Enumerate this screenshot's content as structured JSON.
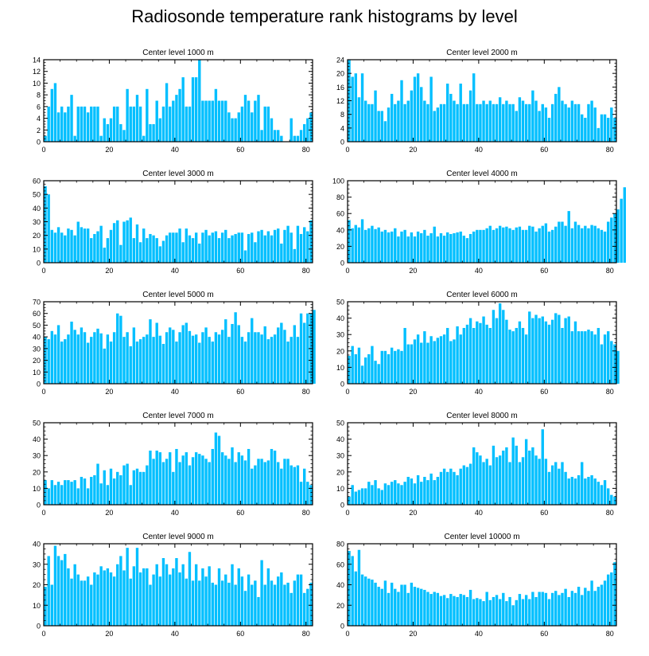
{
  "title": "Radiosonde temperature rank histograms by level",
  "colors": {
    "bar": "#00BFFF",
    "axis": "#000000",
    "background": "#ffffff"
  },
  "chart_data": [
    {
      "type": "bar",
      "title": "Center level 1000 m",
      "xlim": [
        0,
        82
      ],
      "ylim": [
        0,
        14
      ],
      "xticks": [
        0,
        20,
        40,
        60,
        80
      ],
      "yticks": [
        0,
        2,
        4,
        6,
        8,
        10,
        12,
        14
      ],
      "values": [
        1,
        6,
        9,
        10,
        5,
        6,
        5,
        6,
        8,
        1,
        6,
        6,
        6,
        5,
        6,
        6,
        6,
        1,
        4,
        3,
        4,
        6,
        6,
        3,
        2,
        9,
        6,
        6,
        8,
        6,
        1,
        9,
        3,
        3,
        7,
        4,
        6,
        10,
        6,
        7,
        8,
        9,
        11,
        6,
        6,
        11,
        11,
        14,
        7,
        7,
        7,
        7,
        9,
        7,
        7,
        7,
        5,
        4,
        4,
        5,
        6,
        8,
        7,
        5,
        7,
        8,
        2,
        6,
        6,
        4,
        2,
        2,
        1,
        0,
        0,
        4,
        1,
        1,
        2,
        3,
        4,
        5
      ]
    },
    {
      "type": "bar",
      "title": "Center level 2000 m",
      "xlim": [
        0,
        82
      ],
      "ylim": [
        0,
        24
      ],
      "xticks": [
        0,
        20,
        40,
        60,
        80
      ],
      "yticks": [
        0,
        4,
        8,
        12,
        16,
        20,
        24
      ],
      "values": [
        24,
        19,
        20,
        13,
        20,
        12,
        11,
        11,
        15,
        9,
        9,
        6,
        10,
        14,
        11,
        12,
        18,
        11,
        12,
        15,
        19,
        20,
        16,
        12,
        11,
        19,
        9,
        10,
        11,
        11,
        17,
        14,
        12,
        11,
        17,
        11,
        11,
        15,
        20,
        11,
        11,
        12,
        11,
        12,
        11,
        11,
        13,
        11,
        12,
        11,
        11,
        9,
        13,
        12,
        11,
        11,
        15,
        12,
        9,
        11,
        10,
        7,
        11,
        14,
        16,
        12,
        11,
        10,
        12,
        11,
        11,
        8,
        7,
        11,
        12,
        10,
        4,
        8,
        8,
        7,
        10,
        7
      ]
    },
    {
      "type": "bar",
      "title": "Center level 3000 m",
      "xlim": [
        0,
        82
      ],
      "ylim": [
        0,
        60
      ],
      "xticks": [
        0,
        20,
        40,
        60,
        80
      ],
      "yticks": [
        0,
        10,
        20,
        30,
        40,
        50,
        60
      ],
      "values": [
        56,
        50,
        24,
        22,
        26,
        22,
        20,
        25,
        24,
        20,
        30,
        26,
        25,
        25,
        18,
        21,
        23,
        27,
        11,
        18,
        24,
        29,
        31,
        13,
        30,
        31,
        33,
        18,
        28,
        15,
        25,
        18,
        21,
        20,
        18,
        12,
        16,
        20,
        22,
        22,
        22,
        25,
        15,
        25,
        20,
        18,
        22,
        14,
        22,
        24,
        20,
        22,
        23,
        18,
        22,
        24,
        18,
        20,
        21,
        22,
        22,
        9,
        21,
        22,
        15,
        23,
        24,
        20,
        23,
        20,
        24,
        25,
        14,
        24,
        27,
        22,
        10,
        27,
        21,
        26,
        23,
        31
      ]
    },
    {
      "type": "bar",
      "title": "Center level 4000 m",
      "xlim": [
        0,
        82
      ],
      "ylim": [
        0,
        100
      ],
      "xticks": [
        0,
        20,
        40,
        60,
        80
      ],
      "yticks": [
        0,
        20,
        40,
        60,
        80,
        100
      ],
      "values": [
        52,
        42,
        46,
        43,
        53,
        40,
        42,
        45,
        41,
        43,
        38,
        40,
        37,
        38,
        42,
        32,
        38,
        40,
        32,
        37,
        32,
        38,
        36,
        40,
        33,
        36,
        44,
        32,
        36,
        33,
        37,
        35,
        36,
        37,
        38,
        33,
        30,
        35,
        38,
        40,
        40,
        40,
        42,
        45,
        40,
        42,
        45,
        43,
        44,
        42,
        40,
        43,
        44,
        40,
        40,
        45,
        44,
        38,
        42,
        45,
        48,
        38,
        40,
        44,
        50,
        50,
        45,
        63,
        42,
        50,
        46,
        42,
        45,
        42,
        46,
        45,
        42,
        40,
        38,
        50,
        55,
        60,
        65,
        78,
        92
      ]
    },
    {
      "type": "bar",
      "title": "Center level 5000 m",
      "xlim": [
        0,
        82
      ],
      "ylim": [
        0,
        70
      ],
      "xticks": [
        0,
        20,
        40,
        60,
        80
      ],
      "yticks": [
        0,
        10,
        20,
        30,
        40,
        50,
        60,
        70
      ],
      "values": [
        40,
        38,
        45,
        42,
        50,
        36,
        38,
        42,
        53,
        46,
        42,
        48,
        44,
        35,
        40,
        44,
        47,
        43,
        30,
        42,
        36,
        44,
        60,
        58,
        40,
        44,
        32,
        48,
        36,
        38,
        40,
        42,
        55,
        40,
        52,
        41,
        34,
        44,
        48,
        46,
        36,
        44,
        50,
        52,
        45,
        41,
        42,
        35,
        44,
        48,
        40,
        36,
        44,
        42,
        46,
        55,
        40,
        51,
        61,
        50,
        40,
        36,
        44,
        56,
        44,
        44,
        42,
        49,
        38,
        40,
        42,
        48,
        52,
        46,
        36,
        40,
        50,
        40,
        60,
        52,
        60,
        60,
        63
      ]
    },
    {
      "type": "bar",
      "title": "Center level 6000 m",
      "xlim": [
        0,
        82
      ],
      "ylim": [
        0,
        50
      ],
      "xticks": [
        0,
        20,
        40,
        60,
        80
      ],
      "yticks": [
        0,
        10,
        20,
        30,
        40,
        50
      ],
      "values": [
        17,
        23,
        18,
        22,
        11,
        16,
        18,
        23,
        14,
        12,
        20,
        20,
        18,
        22,
        20,
        21,
        20,
        34,
        24,
        24,
        27,
        30,
        25,
        32,
        25,
        29,
        26,
        28,
        29,
        30,
        34,
        26,
        27,
        35,
        30,
        34,
        36,
        40,
        34,
        38,
        37,
        41,
        36,
        34,
        45,
        40,
        49,
        45,
        39,
        33,
        32,
        34,
        38,
        34,
        30,
        44,
        40,
        42,
        40,
        41,
        38,
        36,
        39,
        43,
        42,
        34,
        40,
        41,
        32,
        38,
        32,
        32,
        32,
        33,
        32,
        30,
        34,
        24,
        30,
        32,
        26,
        24,
        20
      ]
    },
    {
      "type": "bar",
      "title": "Center level 7000 m",
      "xlim": [
        0,
        82
      ],
      "ylim": [
        0,
        50
      ],
      "xticks": [
        0,
        20,
        40,
        60,
        80
      ],
      "yticks": [
        0,
        10,
        20,
        30,
        40,
        50
      ],
      "values": [
        15,
        10,
        15,
        12,
        14,
        12,
        15,
        15,
        14,
        15,
        10,
        17,
        16,
        10,
        17,
        18,
        25,
        13,
        21,
        12,
        22,
        16,
        20,
        18,
        24,
        25,
        12,
        21,
        22,
        20,
        20,
        24,
        33,
        28,
        33,
        32,
        26,
        28,
        32,
        20,
        34,
        26,
        30,
        32,
        24,
        29,
        32,
        31,
        30,
        28,
        26,
        34,
        44,
        42,
        32,
        30,
        28,
        35,
        26,
        32,
        30,
        27,
        34,
        22,
        24,
        28,
        28,
        26,
        27,
        34,
        33,
        26,
        22,
        28,
        28,
        24,
        23,
        24,
        14,
        22,
        14,
        12
      ]
    },
    {
      "type": "bar",
      "title": "Center level 8000 m",
      "xlim": [
        0,
        82
      ],
      "ylim": [
        0,
        50
      ],
      "xticks": [
        0,
        20,
        40,
        60,
        80
      ],
      "yticks": [
        0,
        10,
        20,
        30,
        40,
        50
      ],
      "values": [
        5,
        12,
        8,
        9,
        10,
        10,
        14,
        12,
        15,
        10,
        9,
        13,
        12,
        14,
        15,
        13,
        12,
        14,
        17,
        16,
        13,
        18,
        14,
        17,
        15,
        19,
        15,
        17,
        20,
        22,
        20,
        22,
        20,
        18,
        22,
        24,
        23,
        25,
        35,
        32,
        30,
        26,
        28,
        24,
        36,
        29,
        30,
        33,
        35,
        26,
        41,
        36,
        26,
        29,
        40,
        33,
        35,
        30,
        28,
        46,
        28,
        20,
        24,
        26,
        22,
        26,
        20,
        16,
        17,
        16,
        18,
        26,
        16,
        17,
        18,
        16,
        14,
        12,
        15,
        10,
        6,
        5
      ]
    },
    {
      "type": "bar",
      "title": "Center level 9000 m",
      "xlim": [
        0,
        82
      ],
      "ylim": [
        0,
        40
      ],
      "xticks": [
        0,
        20,
        40,
        60,
        80
      ],
      "yticks": [
        0,
        10,
        20,
        30,
        40
      ],
      "values": [
        19,
        34,
        20,
        39,
        34,
        32,
        35,
        28,
        23,
        30,
        25,
        22,
        22,
        24,
        20,
        26,
        25,
        29,
        27,
        28,
        26,
        24,
        30,
        34,
        27,
        38,
        23,
        29,
        38,
        26,
        28,
        28,
        20,
        25,
        30,
        24,
        33,
        30,
        25,
        28,
        33,
        26,
        30,
        23,
        36,
        22,
        30,
        22,
        28,
        24,
        29,
        21,
        20,
        28,
        22,
        25,
        21,
        30,
        20,
        28,
        24,
        17,
        25,
        20,
        22,
        14,
        32,
        20,
        28,
        22,
        20,
        24,
        26,
        20,
        21,
        16,
        22,
        25,
        25,
        16,
        18,
        21
      ]
    },
    {
      "type": "bar",
      "title": "Center level 10000 m",
      "xlim": [
        0,
        82
      ],
      "ylim": [
        0,
        80
      ],
      "xticks": [
        0,
        20,
        40,
        60,
        80
      ],
      "yticks": [
        0,
        20,
        40,
        60,
        80
      ],
      "values": [
        73,
        68,
        53,
        74,
        50,
        48,
        46,
        45,
        42,
        38,
        36,
        44,
        32,
        42,
        36,
        33,
        40,
        40,
        32,
        42,
        38,
        37,
        36,
        35,
        33,
        31,
        33,
        32,
        29,
        30,
        27,
        31,
        29,
        28,
        31,
        30,
        28,
        35,
        26,
        27,
        26,
        24,
        33,
        25,
        28,
        30,
        26,
        32,
        24,
        28,
        20,
        25,
        31,
        26,
        30,
        26,
        33,
        28,
        33,
        33,
        32,
        26,
        32,
        34,
        30,
        32,
        36,
        28,
        34,
        32,
        38,
        30,
        37,
        34,
        44,
        34,
        38,
        40,
        44,
        50,
        52,
        62
      ]
    }
  ]
}
